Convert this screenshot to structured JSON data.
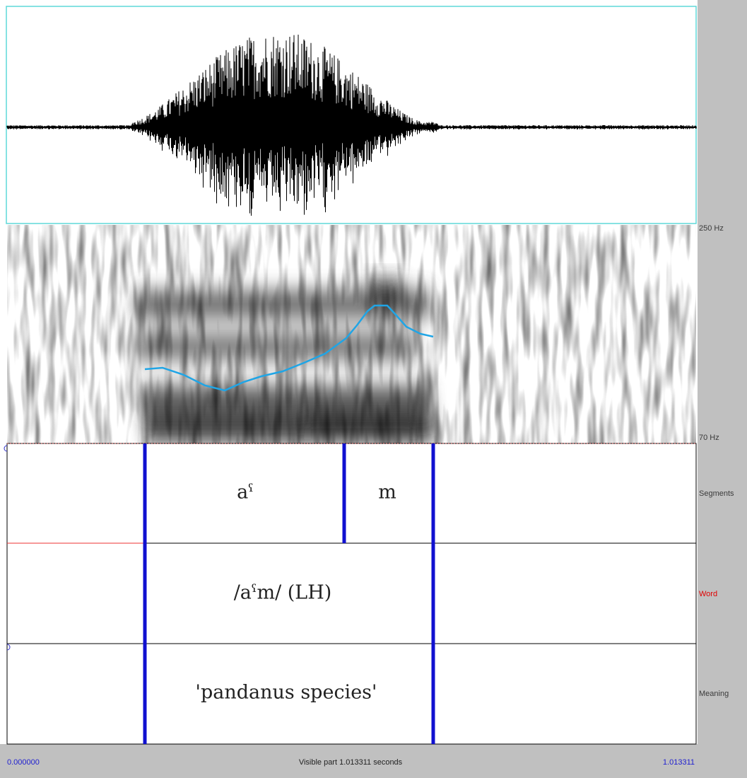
{
  "spectrogram": {
    "max_label": "250 Hz",
    "min_label": "70 Hz"
  },
  "tiers": [
    {
      "name": "Segments",
      "intervals": [
        "aˤ",
        "m"
      ]
    },
    {
      "name": "Word",
      "intervals": [
        "/aˤm/ (LH)"
      ]
    },
    {
      "name": "Meaning",
      "intervals": [
        "'pandanus species'"
      ]
    }
  ],
  "footer": {
    "start": "0.000000",
    "visible": "Visible part 1.013311 seconds",
    "end": "1.013311"
  }
}
